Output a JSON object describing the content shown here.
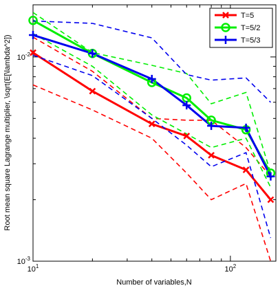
{
  "chart_data": {
    "type": "line",
    "xscale": "log",
    "yscale": "log",
    "xlabel": "Number of variables,N",
    "ylabel": "Root mean square Lagrange multiplier, \\sqrt(E[\\lambda^2])",
    "xlim": [
      10,
      170
    ],
    "ylim": [
      0.001,
      0.018
    ],
    "x_ticks": [
      {
        "value": 10,
        "base": "10",
        "exp": "1"
      },
      {
        "value": 100,
        "base": "10",
        "exp": "2"
      }
    ],
    "y_ticks": [
      {
        "value": 0.001,
        "base": "10",
        "exp": "-3"
      },
      {
        "value": 0.01,
        "base": "10",
        "exp": "-2"
      }
    ],
    "legend_position": "top-right",
    "series": [
      {
        "name": "T=5",
        "color": "#ff0000",
        "marker": "x",
        "x": [
          10,
          20,
          40,
          60,
          80,
          120,
          160
        ],
        "y": [
          0.0105,
          0.0068,
          0.0047,
          0.0041,
          0.0033,
          0.0028,
          0.002
        ],
        "lower": [
          0.0073,
          0.0055,
          0.004,
          0.0027,
          0.002,
          0.0024,
          0.001
        ],
        "upper": [
          0.0125,
          0.0085,
          0.005,
          0.0049,
          0.0049,
          0.0036,
          0.0026
        ]
      },
      {
        "name": "T=5/2",
        "color": "#00ee00",
        "marker": "o",
        "x": [
          10,
          20,
          40,
          60,
          80,
          120,
          160
        ],
        "y": [
          0.0151,
          0.0104,
          0.0075,
          0.0063,
          0.0049,
          0.0044,
          0.0027
        ],
        "lower": [
          0.013,
          0.009,
          0.0052,
          0.0042,
          0.0036,
          0.004,
          0.0023
        ],
        "upper": [
          0.0165,
          0.0105,
          0.0091,
          0.0083,
          0.0059,
          0.0067,
          0.0027
        ]
      },
      {
        "name": "T=5/3",
        "color": "#0000ee",
        "marker": "+",
        "x": [
          10,
          20,
          40,
          60,
          80,
          120,
          160
        ],
        "y": [
          0.0128,
          0.0104,
          0.0078,
          0.0058,
          0.0046,
          0.0045,
          0.0026
        ],
        "lower": [
          0.0102,
          0.0081,
          0.005,
          0.0037,
          0.0029,
          0.0034,
          0.0013
        ],
        "upper": [
          0.015,
          0.0146,
          0.0124,
          0.0082,
          0.0077,
          0.0079,
          0.006
        ]
      }
    ]
  }
}
